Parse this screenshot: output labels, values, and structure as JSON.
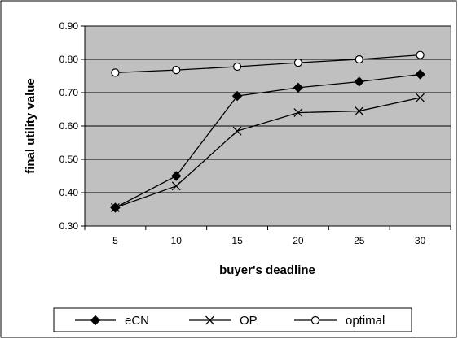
{
  "chart_data": {
    "type": "line",
    "title": "",
    "xlabel": "buyer's deadline",
    "ylabel": "final utility value",
    "x": [
      5,
      10,
      15,
      20,
      25,
      30
    ],
    "x_tick_labels": [
      "5",
      "10",
      "15",
      "20",
      "25",
      "30"
    ],
    "ylim": [
      0.3,
      0.9
    ],
    "y_tick_labels": [
      "0.30",
      "0.40",
      "0.50",
      "0.60",
      "0.70",
      "0.80",
      "0.90"
    ],
    "grid": true,
    "plot_background": "#c0c0c0",
    "legend_position": "bottom",
    "series": [
      {
        "name": "eCN",
        "marker": "diamond-filled",
        "color": "#000000",
        "values": [
          0.355,
          0.45,
          0.69,
          0.715,
          0.733,
          0.755
        ]
      },
      {
        "name": "OP",
        "marker": "x",
        "color": "#000000",
        "values": [
          0.355,
          0.42,
          0.585,
          0.64,
          0.645,
          0.685
        ]
      },
      {
        "name": "optimal",
        "marker": "circle-open",
        "color": "#000000",
        "values": [
          0.76,
          0.768,
          0.778,
          0.79,
          0.8,
          0.813
        ]
      }
    ]
  }
}
